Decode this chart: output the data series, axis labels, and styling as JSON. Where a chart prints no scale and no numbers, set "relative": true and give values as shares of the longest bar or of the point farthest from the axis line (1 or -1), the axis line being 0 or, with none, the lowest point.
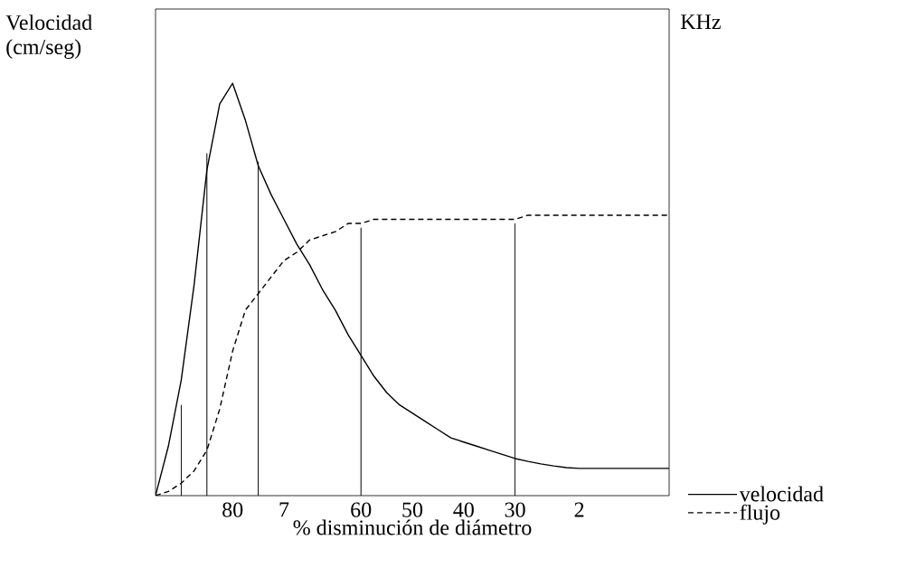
{
  "chart_data": {
    "type": "line",
    "relative": true,
    "xlabel": "% disminución de diámetro",
    "ylabel": "Velocidad (cm/seg)",
    "y2label": "KHz",
    "categories": [
      null,
      null,
      null,
      null,
      null,
      null,
      "80",
      null,
      null,
      null,
      "7",
      null,
      null,
      null,
      null,
      null,
      "60",
      null,
      null,
      null,
      "50",
      null,
      null,
      null,
      "40",
      null,
      null,
      null,
      "30",
      null,
      null,
      null,
      null,
      "2",
      null,
      null,
      null,
      null,
      null,
      null,
      null
    ],
    "series": [
      {
        "name": "velocidad",
        "color": "#000000",
        "line_style": "solid",
        "values": [
          0,
          0.12,
          0.28,
          0.51,
          0.79,
          0.95,
          1,
          0.91,
          0.8,
          0.73,
          0.67,
          0.61,
          0.56,
          0.5,
          0.45,
          0.39,
          0.34,
          0.29,
          0.25,
          0.22,
          0.2,
          0.18,
          0.16,
          0.14,
          0.13,
          0.12,
          0.11,
          0.1,
          0.09,
          0.083,
          0.077,
          0.072,
          0.068,
          0.066,
          0.066,
          0.066,
          0.066,
          0.066,
          0.066,
          0.066,
          0.066
        ]
      },
      {
        "name": "flujo",
        "color": "#000000",
        "line_style": "dashed",
        "values": [
          0,
          0.01,
          0.03,
          0.06,
          0.11,
          0.21,
          0.35,
          0.45,
          0.49,
          0.53,
          0.57,
          0.59,
          0.62,
          0.63,
          0.64,
          0.66,
          0.66,
          0.67,
          0.67,
          0.67,
          0.67,
          0.67,
          0.67,
          0.67,
          0.67,
          0.67,
          0.67,
          0.67,
          0.67,
          0.68,
          0.68,
          0.68,
          0.68,
          0.68,
          0.68,
          0.68,
          0.68,
          0.68,
          0.68,
          0.68,
          0.68
        ]
      },
      {
        "type": "bar",
        "color": "#000000",
        "values": [
          null,
          null,
          0.22,
          null,
          0.83,
          null,
          null,
          null,
          0.81,
          null,
          null,
          null,
          null,
          null,
          null,
          null,
          0.65,
          null,
          null,
          null,
          null,
          null,
          null,
          null,
          null,
          null,
          null,
          null,
          0.66,
          null,
          null,
          null,
          null,
          null,
          null,
          null,
          null,
          null,
          null,
          null,
          null
        ]
      }
    ],
    "legend": "bottom right",
    "marker": "none",
    "grid": false
  }
}
